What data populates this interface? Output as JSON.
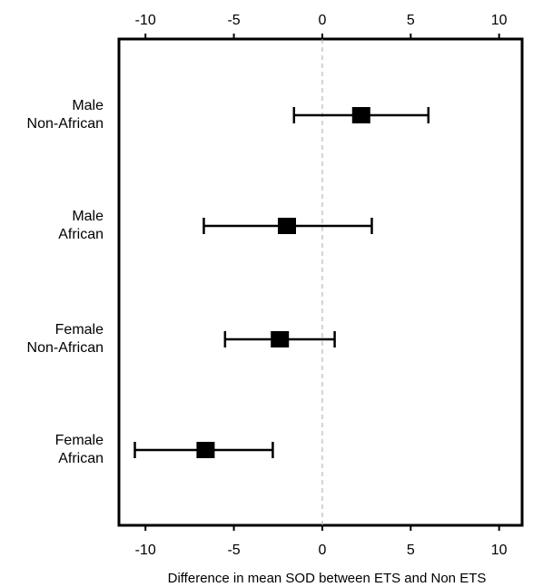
{
  "chart_data": {
    "type": "forest",
    "title": "",
    "xlabel": "Difference in mean SOD between ETS and Non ETS",
    "ylabel": "",
    "xlim": [
      -11.5,
      11.3
    ],
    "xticks": [
      -10,
      -5,
      0,
      5,
      10
    ],
    "xtick_labels": [
      "-10",
      "-5",
      "0",
      "5",
      "10"
    ],
    "top_axis": true,
    "reference_line": 0,
    "grid": false,
    "categories": [
      {
        "line1": "Male",
        "line2": "Non-African",
        "estimate": 2.2,
        "lower": -1.6,
        "upper": 6.0
      },
      {
        "line1": "Male",
        "line2": "African",
        "estimate": -2.0,
        "lower": -6.7,
        "upper": 2.8
      },
      {
        "line1": "Female",
        "line2": "Non-African",
        "estimate": -2.4,
        "lower": -5.5,
        "upper": 0.7
      },
      {
        "line1": "Female",
        "line2": "African",
        "estimate": -6.6,
        "lower": -10.6,
        "upper": -2.8
      }
    ],
    "colors": {
      "marker": "#000000",
      "axis": "#000000",
      "reference": "#aaaaaa"
    }
  }
}
